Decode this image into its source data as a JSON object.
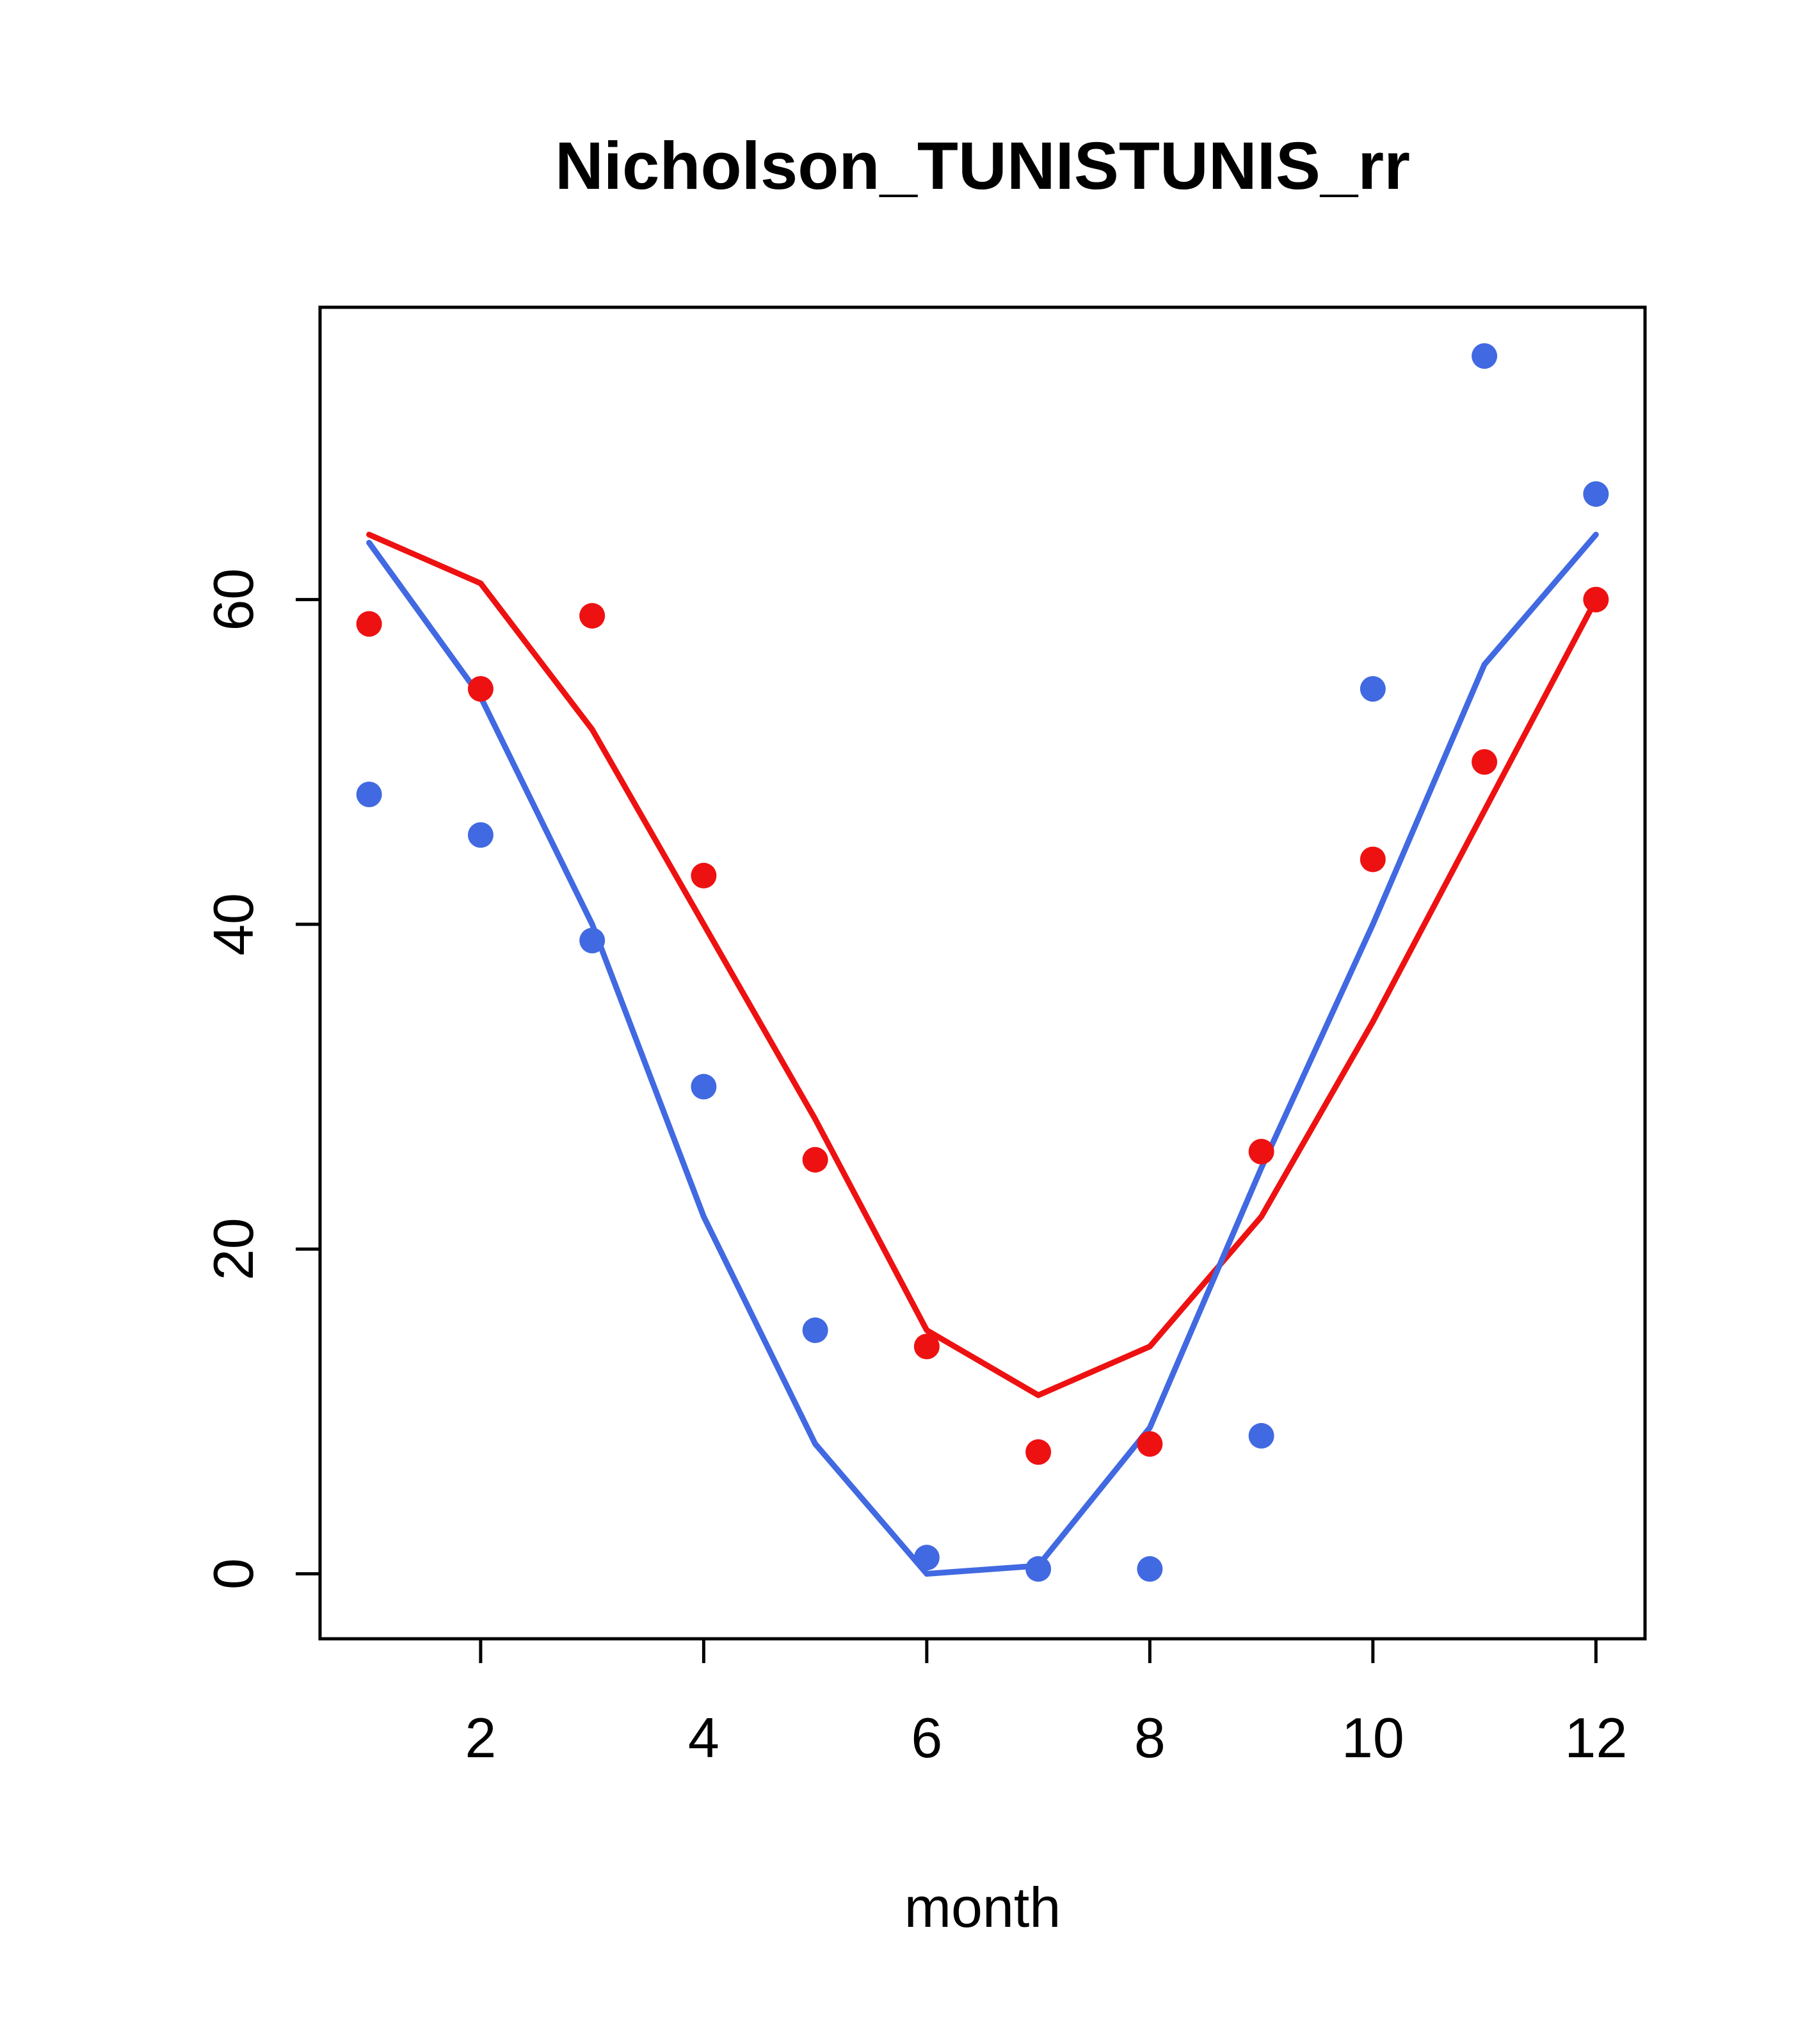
{
  "chart_data": {
    "type": "scatter",
    "title": "Nicholson_TUNISTUNIS_rr",
    "xlabel": "month",
    "ylabel": "",
    "x": [
      1,
      2,
      3,
      4,
      5,
      6,
      7,
      8,
      9,
      10,
      11,
      12
    ],
    "xticks": [
      2,
      4,
      6,
      8,
      10,
      12
    ],
    "yticks": [
      0,
      20,
      40,
      60
    ],
    "xlim": [
      0.56,
      12.44
    ],
    "ylim": [
      -4,
      78
    ],
    "grid": false,
    "legend": "none",
    "colors": {
      "red": "#ee1111",
      "blue": "#4169e1",
      "axis": "#000000",
      "background": "#ffffff"
    },
    "series": [
      {
        "name": "red-line",
        "type": "line",
        "color": "#ee1111",
        "values": [
          64,
          61,
          52,
          40,
          28,
          15,
          11,
          14,
          22,
          34,
          47,
          60
        ]
      },
      {
        "name": "blue-line",
        "type": "line",
        "color": "#4169e1",
        "values": [
          63.5,
          54,
          40,
          22,
          8,
          0,
          0.5,
          9,
          25,
          40,
          56,
          64
        ]
      },
      {
        "name": "red-points",
        "type": "scatter",
        "color": "#ee1111",
        "values": [
          58.5,
          54.5,
          59,
          43,
          25.5,
          14,
          7.5,
          8,
          26,
          44,
          50,
          60
        ]
      },
      {
        "name": "blue-points",
        "type": "scatter",
        "color": "#4169e1",
        "values": [
          48,
          45.5,
          39,
          30,
          15,
          1,
          0.3,
          0.3,
          8.5,
          54.5,
          75,
          66.5
        ]
      }
    ]
  }
}
